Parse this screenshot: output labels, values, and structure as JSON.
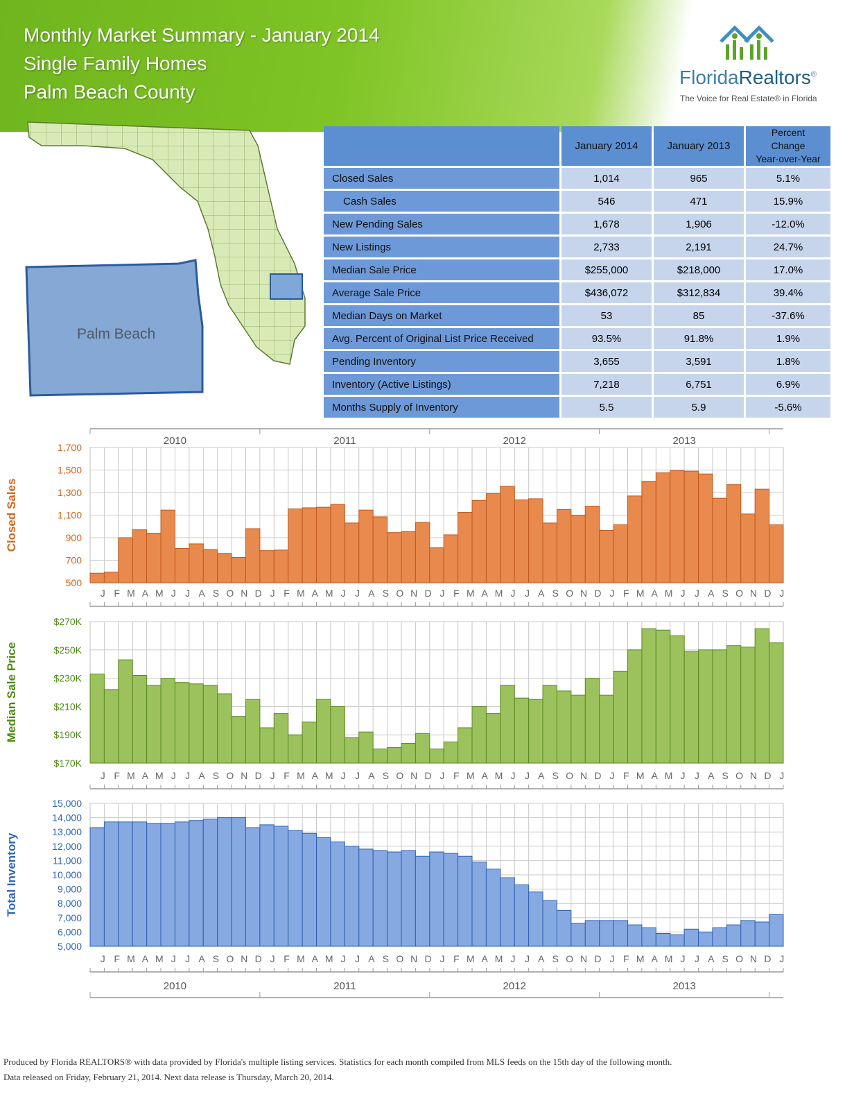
{
  "header": {
    "title_line1": "Monthly Market Summary - January 2014",
    "title_line2": "Single Family Homes",
    "title_line3": "Palm Beach County"
  },
  "logo": {
    "name_part1": "Florida",
    "name_part2": "Realtors",
    "registered": "®",
    "tagline": "The Voice for Real Estate® in Florida"
  },
  "map": {
    "county_label": "Palm Beach"
  },
  "table": {
    "headers": [
      "January 2014",
      "January 2013",
      "Percent Change Year-over-Year"
    ],
    "header_pct_line1": "Percent Change",
    "header_pct_line2": "Year-over-Year",
    "rows": [
      {
        "metric": "Closed Sales",
        "jan2014": "1,014",
        "jan2013": "965",
        "change": "5.1%"
      },
      {
        "metric": "Cash Sales",
        "jan2014": "546",
        "jan2013": "471",
        "change": "15.9%"
      },
      {
        "metric": "New Pending Sales",
        "jan2014": "1,678",
        "jan2013": "1,906",
        "change": "-12.0%"
      },
      {
        "metric": "New Listings",
        "jan2014": "2,733",
        "jan2013": "2,191",
        "change": "24.7%"
      },
      {
        "metric": "Median Sale Price",
        "jan2014": "$255,000",
        "jan2013": "$218,000",
        "change": "17.0%"
      },
      {
        "metric": "Average Sale Price",
        "jan2014": "$436,072",
        "jan2013": "$312,834",
        "change": "39.4%"
      },
      {
        "metric": "Median Days on Market",
        "jan2014": "53",
        "jan2013": "85",
        "change": "-37.6%"
      },
      {
        "metric": "Avg. Percent of Original List Price Received",
        "jan2014": "93.5%",
        "jan2013": "91.8%",
        "change": "1.9%"
      },
      {
        "metric": "Pending Inventory",
        "jan2014": "3,655",
        "jan2013": "3,591",
        "change": "1.8%"
      },
      {
        "metric": "Inventory (Active Listings)",
        "jan2014": "7,218",
        "jan2013": "6,751",
        "change": "6.9%"
      },
      {
        "metric": "Months Supply of Inventory",
        "jan2014": "5.5",
        "jan2013": "5.9",
        "change": "-5.6%"
      }
    ]
  },
  "chart_data": [
    {
      "type": "bar",
      "title": "Closed Sales",
      "ylabel": "Closed Sales",
      "color": "#e88a4e",
      "stroke": "#c0581c",
      "label_color": "#d4661c",
      "ylim": [
        500,
        1700
      ],
      "yticks": [
        500,
        700,
        900,
        1100,
        1300,
        1500,
        1700
      ],
      "ytick_labels": [
        "500",
        "700",
        "900",
        "1,100",
        "1,300",
        "1,500",
        "1,700"
      ],
      "years": [
        "2010",
        "2011",
        "2012",
        "2013"
      ],
      "month_labels": [
        "J",
        "F",
        "M",
        "A",
        "M",
        "J",
        "J",
        "A",
        "S",
        "O",
        "N",
        "D",
        "J",
        "F",
        "M",
        "A",
        "M",
        "J",
        "J",
        "A",
        "S",
        "O",
        "N",
        "D",
        "J",
        "F",
        "M",
        "A",
        "M",
        "J",
        "J",
        "A",
        "S",
        "O",
        "N",
        "D",
        "J",
        "F",
        "M",
        "A",
        "M",
        "J",
        "J",
        "A",
        "S",
        "O",
        "N",
        "D",
        "J"
      ],
      "values": [
        585,
        595,
        900,
        970,
        940,
        1145,
        805,
        845,
        795,
        760,
        725,
        980,
        785,
        790,
        1155,
        1165,
        1170,
        1195,
        1030,
        1145,
        1085,
        945,
        955,
        1035,
        810,
        925,
        1125,
        1230,
        1290,
        1355,
        1235,
        1245,
        1030,
        1150,
        1100,
        1180,
        965,
        1015,
        1270,
        1400,
        1475,
        1495,
        1490,
        1465,
        1250,
        1370,
        1110,
        1330,
        1014
      ]
    },
    {
      "type": "bar",
      "title": "Median Sale Price",
      "ylabel": "Median Sale Price",
      "color": "#9bc25c",
      "stroke": "#5b8a22",
      "label_color": "#4c8a14",
      "ylim": [
        170,
        270
      ],
      "yticks": [
        170,
        190,
        210,
        230,
        250,
        270
      ],
      "ytick_labels": [
        "$170K",
        "$190K",
        "$210K",
        "$230K",
        "$250K",
        "$270K"
      ],
      "years": [
        "2010",
        "2011",
        "2012",
        "2013"
      ],
      "month_labels": [
        "J",
        "F",
        "M",
        "A",
        "M",
        "J",
        "J",
        "A",
        "S",
        "O",
        "N",
        "D",
        "J",
        "F",
        "M",
        "A",
        "M",
        "J",
        "J",
        "A",
        "S",
        "O",
        "N",
        "D",
        "J",
        "F",
        "M",
        "A",
        "M",
        "J",
        "J",
        "A",
        "S",
        "O",
        "N",
        "D",
        "J",
        "F",
        "M",
        "A",
        "M",
        "J",
        "J",
        "A",
        "S",
        "O",
        "N",
        "D",
        "J"
      ],
      "values": [
        233,
        222,
        243,
        232,
        225,
        230,
        227,
        226,
        225,
        219,
        203,
        215,
        195,
        205,
        190,
        199,
        215,
        210,
        188,
        192,
        180,
        181,
        184,
        191,
        180,
        185,
        195,
        210,
        205,
        225,
        216,
        215,
        225,
        221,
        218,
        230,
        218,
        235,
        250,
        265,
        264,
        260,
        249,
        250,
        250,
        253,
        252,
        265,
        255
      ]
    },
    {
      "type": "bar",
      "title": "Total Inventory",
      "ylabel": "Total Inventory",
      "color": "#86a9e2",
      "stroke": "#2e5fb0",
      "label_color": "#2e64b8",
      "ylim": [
        5000,
        15000
      ],
      "yticks": [
        5000,
        6000,
        7000,
        8000,
        9000,
        10000,
        11000,
        12000,
        13000,
        14000,
        15000
      ],
      "ytick_labels": [
        "5,000",
        "6,000",
        "7,000",
        "8,000",
        "9,000",
        "10,000",
        "11,000",
        "12,000",
        "13,000",
        "14,000",
        "15,000"
      ],
      "years": [
        "2010",
        "2011",
        "2012",
        "2013"
      ],
      "month_labels": [
        "J",
        "F",
        "M",
        "A",
        "M",
        "J",
        "J",
        "A",
        "S",
        "O",
        "N",
        "D",
        "J",
        "F",
        "M",
        "A",
        "M",
        "J",
        "J",
        "A",
        "S",
        "O",
        "N",
        "D",
        "J",
        "F",
        "M",
        "A",
        "M",
        "J",
        "J",
        "A",
        "S",
        "O",
        "N",
        "D",
        "J",
        "F",
        "M",
        "A",
        "M",
        "J",
        "J",
        "A",
        "S",
        "O",
        "N",
        "D",
        "J"
      ],
      "values": [
        13300,
        13700,
        13700,
        13700,
        13600,
        13600,
        13700,
        13800,
        13900,
        14000,
        14000,
        13300,
        13500,
        13400,
        13100,
        12900,
        12600,
        12300,
        12000,
        11800,
        11700,
        11600,
        11700,
        11300,
        11600,
        11500,
        11300,
        10900,
        10400,
        9800,
        9300,
        8800,
        8200,
        7500,
        6600,
        6800,
        6800,
        6800,
        6500,
        6300,
        5900,
        5800,
        6200,
        6000,
        6300,
        6500,
        6800,
        6700,
        7218
      ]
    }
  ],
  "footer": {
    "line1": "Produced by Florida REALTORS® with data provided by Florida's multiple listing services. Statistics for each month compiled from MLS feeds on the 15th day of the following month.",
    "line2": "Data released on Friday, February 21, 2014. Next data release is Thursday, March 20, 2014."
  }
}
